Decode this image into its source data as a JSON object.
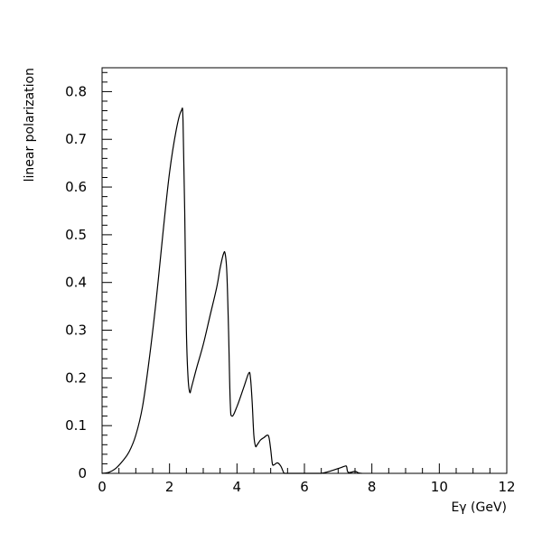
{
  "chart_data": {
    "type": "line",
    "title": "",
    "xlabel": "Eγ (GeV)",
    "ylabel": "linear polarization",
    "xlim": [
      0,
      12
    ],
    "ylim": [
      0,
      0.85
    ],
    "xticks": [
      0,
      2,
      4,
      6,
      8,
      10,
      12
    ],
    "xtick_labels": [
      "0",
      "2",
      "4",
      "6",
      "8",
      "10",
      "12"
    ],
    "yticks": [
      0,
      0.1,
      0.2,
      0.3,
      0.4,
      0.5,
      0.6,
      0.7,
      0.8
    ],
    "ytick_labels": [
      "0",
      "0.1",
      "0.2",
      "0.3",
      "0.4",
      "0.5",
      "0.6",
      "0.7",
      "0.8"
    ],
    "grid": false,
    "legend": "none",
    "line_color": "#000000",
    "series": [
      {
        "x": [
          0.0,
          0.2,
          0.4,
          0.6,
          0.8,
          1.0,
          1.2,
          1.4,
          1.6,
          1.8,
          2.0,
          2.2,
          2.35,
          2.4,
          2.45,
          2.5,
          2.55,
          2.6,
          2.65,
          2.8,
          3.0,
          3.2,
          3.4,
          3.5,
          3.6,
          3.65,
          3.7,
          3.75,
          3.8,
          3.85,
          4.0,
          4.2,
          4.35,
          4.4,
          4.45,
          4.5,
          4.55,
          4.6,
          4.7,
          4.8,
          4.9,
          4.95,
          5.0,
          5.05,
          5.1,
          5.2,
          5.3,
          5.4,
          5.5,
          6.0,
          6.5,
          7.0,
          7.2,
          7.25,
          7.3,
          7.5,
          7.6,
          7.7
        ],
        "y": [
          0.0,
          0.002,
          0.01,
          0.025,
          0.045,
          0.08,
          0.14,
          0.24,
          0.36,
          0.5,
          0.63,
          0.72,
          0.76,
          0.74,
          0.55,
          0.3,
          0.2,
          0.17,
          0.18,
          0.22,
          0.27,
          0.33,
          0.39,
          0.43,
          0.46,
          0.46,
          0.42,
          0.3,
          0.15,
          0.12,
          0.14,
          0.18,
          0.21,
          0.2,
          0.15,
          0.08,
          0.057,
          0.06,
          0.07,
          0.075,
          0.08,
          0.075,
          0.05,
          0.02,
          0.018,
          0.022,
          0.015,
          0.0,
          0.0,
          0.0,
          0.0,
          0.01,
          0.015,
          0.014,
          0.002,
          0.004,
          0.001,
          0.0
        ]
      }
    ]
  }
}
